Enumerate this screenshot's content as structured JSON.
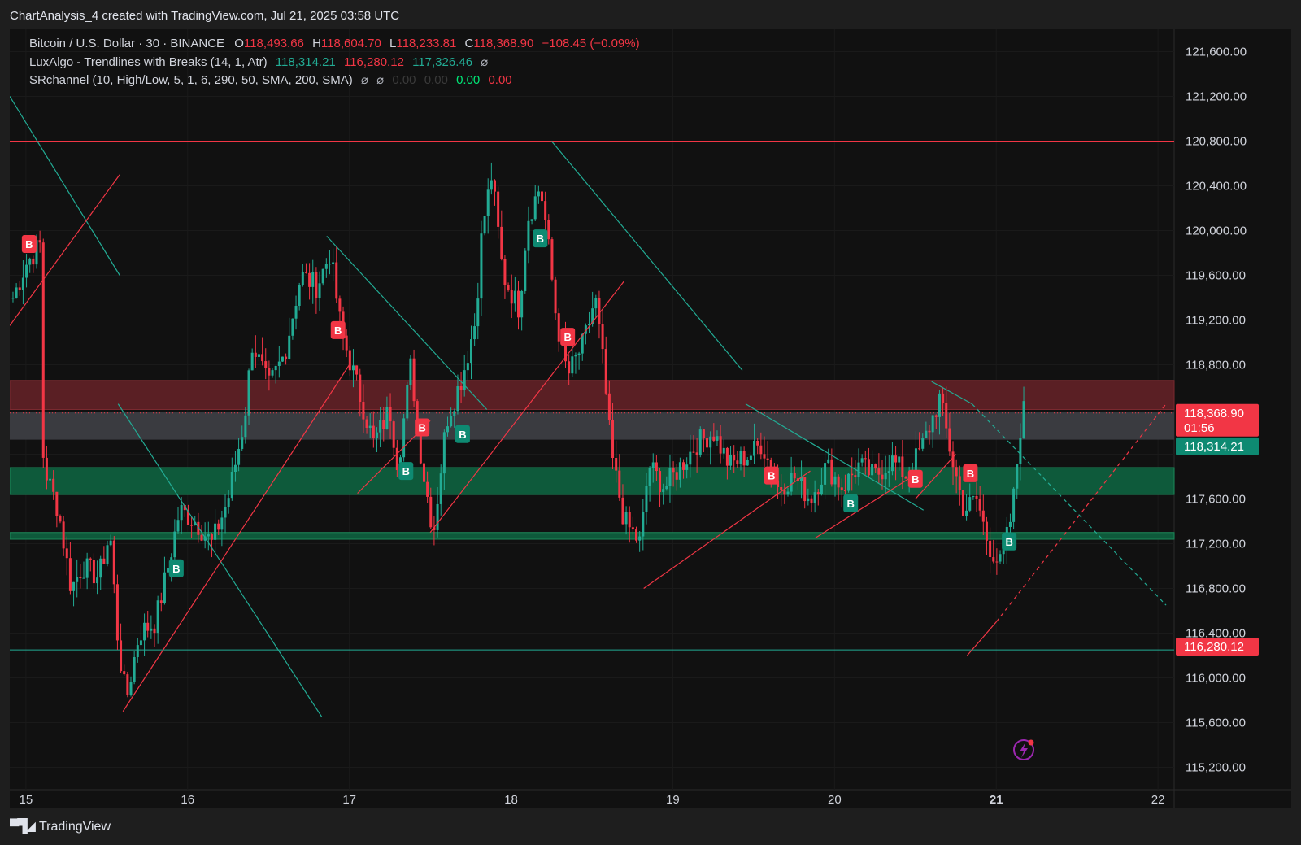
{
  "header": {
    "title": "ChartAnalysis_4 created with TradingView.com, Jul 21, 2025 03:58 UTC"
  },
  "legend": {
    "symbol": "Bitcoin / U.S. Dollar · 30 · BINANCE",
    "open_label": "O",
    "open": "118,493.66",
    "high_label": "H",
    "high": "118,604.70",
    "low_label": "L",
    "low": "118,233.81",
    "close_label": "C",
    "close": "118,368.90",
    "change": "−108.45 (−0.09%)",
    "luxalgo_name": "LuxAlgo - Trendlines with Breaks (14, 1, Atr)",
    "luxalgo_v1": "118,314.21",
    "luxalgo_v2": "116,280.12",
    "luxalgo_v3": "117,326.46",
    "luxalgo_sym": "⌀",
    "sr_name": "SRchannel (10, High/Low, 5, 1, 6, 290, 50, SMA, 200, SMA)",
    "sr_sym1": "⌀",
    "sr_sym2": "⌀",
    "sr_v1": "0.00",
    "sr_v2": "0.00",
    "sr_v3": "0.00",
    "sr_v4": "0.00"
  },
  "price_labels": {
    "last": "118,368.90",
    "countdown": "01:56",
    "trend_upper": "118,314.21",
    "trend_lower": "116,280.12"
  },
  "footer": {
    "brand": "TradingView"
  },
  "colors": {
    "up": "#22ab94",
    "down": "#f23645",
    "background": "#111111",
    "resistance_zone": "#5a1f24",
    "support_zone": "#0e5a3b",
    "price_zone": "#3a3b40"
  },
  "icons": {
    "logo": "tradingview-logo-icon",
    "flash": "lightning-icon"
  },
  "chart_data": {
    "type": "candlestick",
    "interval": "30",
    "y_axis": {
      "ylim": [
        115000,
        121800
      ],
      "ticks": [
        115200,
        115600,
        116000,
        116400,
        116800,
        117200,
        117600,
        118000,
        118400,
        118800,
        119200,
        119600,
        120000,
        120400,
        120800,
        121200,
        121600
      ],
      "tick_labels": [
        "115,200.00",
        "115,600.00",
        "116,000.00",
        "116,400.00",
        "116,800.00",
        "117,200.00",
        "117,600.00",
        "",
        "",
        "118,800.00",
        "119,200.00",
        "119,600.00",
        "120,000.00",
        "120,400.00",
        "120,800.00",
        "121,200.00",
        "121,600.00"
      ]
    },
    "x_axis": {
      "xlim": [
        14.9,
        22.1
      ],
      "ticks": [
        15,
        16,
        17,
        18,
        19,
        20,
        21,
        22
      ],
      "tick_labels": [
        "15",
        "16",
        "17",
        "18",
        "19",
        "20",
        "21",
        "22"
      ]
    },
    "path_points": [
      [
        14.92,
        119400
      ],
      [
        15.0,
        119700
      ],
      [
        15.1,
        119900
      ],
      [
        15.05,
        119550
      ],
      [
        15.07,
        118300
      ],
      [
        15.13,
        117800
      ],
      [
        15.2,
        117500
      ],
      [
        15.28,
        116800
      ],
      [
        15.35,
        117000
      ],
      [
        15.45,
        116900
      ],
      [
        15.52,
        117300
      ],
      [
        15.57,
        116300
      ],
      [
        15.62,
        115800
      ],
      [
        15.7,
        116400
      ],
      [
        15.8,
        116500
      ],
      [
        15.88,
        117000
      ],
      [
        15.95,
        117500
      ],
      [
        16.05,
        117400
      ],
      [
        16.15,
        117200
      ],
      [
        16.25,
        117600
      ],
      [
        16.35,
        118300
      ],
      [
        16.4,
        119000
      ],
      [
        16.5,
        118600
      ],
      [
        16.6,
        118900
      ],
      [
        16.7,
        119600
      ],
      [
        16.8,
        119500
      ],
      [
        16.88,
        119800
      ],
      [
        16.95,
        119100
      ],
      [
        17.05,
        118600
      ],
      [
        17.15,
        118100
      ],
      [
        17.25,
        118400
      ],
      [
        17.3,
        117900
      ],
      [
        17.38,
        118800
      ],
      [
        17.45,
        117900
      ],
      [
        17.52,
        117300
      ],
      [
        17.6,
        118300
      ],
      [
        17.7,
        118700
      ],
      [
        17.78,
        119200
      ],
      [
        17.82,
        120000
      ],
      [
        17.88,
        120500
      ],
      [
        17.95,
        119600
      ],
      [
        18.05,
        119300
      ],
      [
        18.1,
        120100
      ],
      [
        18.18,
        120400
      ],
      [
        18.22,
        120000
      ],
      [
        18.28,
        119200
      ],
      [
        18.35,
        118700
      ],
      [
        18.45,
        119000
      ],
      [
        18.52,
        119400
      ],
      [
        18.57,
        118800
      ],
      [
        18.62,
        118000
      ],
      [
        18.7,
        117400
      ],
      [
        18.8,
        117200
      ],
      [
        18.85,
        117900
      ],
      [
        18.95,
        117700
      ],
      [
        19.05,
        117900
      ],
      [
        19.15,
        118100
      ],
      [
        19.25,
        118200
      ],
      [
        19.35,
        117900
      ],
      [
        19.48,
        118000
      ],
      [
        19.55,
        118100
      ],
      [
        19.65,
        117700
      ],
      [
        19.75,
        117800
      ],
      [
        19.85,
        117600
      ],
      [
        19.95,
        117900
      ],
      [
        20.05,
        117700
      ],
      [
        20.15,
        117900
      ],
      [
        20.25,
        117800
      ],
      [
        20.35,
        117950
      ],
      [
        20.45,
        117800
      ],
      [
        20.55,
        118100
      ],
      [
        20.65,
        118500
      ],
      [
        20.72,
        118000
      ],
      [
        20.8,
        117500
      ],
      [
        20.88,
        117600
      ],
      [
        20.95,
        117200
      ],
      [
        21.03,
        117000
      ],
      [
        21.1,
        117500
      ],
      [
        21.16,
        118400
      ],
      [
        21.19,
        118370
      ]
    ],
    "signals": [
      {
        "label": "B",
        "x": 15.02,
        "y": 119880,
        "type": "bear"
      },
      {
        "label": "B",
        "x": 15.93,
        "y": 116980,
        "type": "bull"
      },
      {
        "label": "B",
        "x": 16.93,
        "y": 119110,
        "type": "bear"
      },
      {
        "label": "B",
        "x": 17.35,
        "y": 117850,
        "type": "bull"
      },
      {
        "label": "B",
        "x": 17.45,
        "y": 118240,
        "type": "bear"
      },
      {
        "label": "B",
        "x": 17.7,
        "y": 118180,
        "type": "bull"
      },
      {
        "label": "B",
        "x": 18.18,
        "y": 119930,
        "type": "bull"
      },
      {
        "label": "B",
        "x": 18.35,
        "y": 119050,
        "type": "bear"
      },
      {
        "label": "B",
        "x": 19.61,
        "y": 117810,
        "type": "bear"
      },
      {
        "label": "B",
        "x": 20.1,
        "y": 117560,
        "type": "bull"
      },
      {
        "label": "B",
        "x": 20.5,
        "y": 117780,
        "type": "bear"
      },
      {
        "label": "B",
        "x": 20.84,
        "y": 117830,
        "type": "bear"
      },
      {
        "label": "B",
        "x": 21.08,
        "y": 117220,
        "type": "bull"
      }
    ],
    "zones": [
      {
        "name": "resistance",
        "from": 118400,
        "to": 118660,
        "color": "#5a1f24"
      },
      {
        "name": "current",
        "from": 118130,
        "to": 118380,
        "color": "#3a3b40"
      },
      {
        "name": "support",
        "from": 117640,
        "to": 117880,
        "color": "#0e5a3b"
      },
      {
        "name": "support-thin",
        "from": 117240,
        "to": 117300,
        "color": "#0e5a3b"
      }
    ],
    "horizontal_lines": [
      {
        "y": 120800,
        "color": "#f23645"
      },
      {
        "y": 116250,
        "color": "#22ab94"
      }
    ],
    "trendlines": [
      {
        "from": [
          14.9,
          121200
        ],
        "to": [
          15.58,
          119600
        ],
        "color": "teal"
      },
      {
        "from": [
          14.9,
          119150
        ],
        "to": [
          15.58,
          120500
        ],
        "color": "red"
      },
      {
        "from": [
          15.57,
          118450
        ],
        "to": [
          16.83,
          115650
        ],
        "color": "teal"
      },
      {
        "from": [
          15.6,
          115700
        ],
        "to": [
          17.0,
          118800
        ],
        "color": "red"
      },
      {
        "from": [
          16.86,
          119950
        ],
        "to": [
          17.85,
          118400
        ],
        "color": "teal"
      },
      {
        "from": [
          17.05,
          117650
        ],
        "to": [
          17.5,
          118300
        ],
        "color": "red"
      },
      {
        "from": [
          17.5,
          117300
        ],
        "to": [
          18.7,
          119550
        ],
        "color": "red"
      },
      {
        "from": [
          18.25,
          120800
        ],
        "to": [
          19.43,
          118750
        ],
        "color": "teal"
      },
      {
        "from": [
          18.82,
          116800
        ],
        "to": [
          19.85,
          117850
        ],
        "color": "red"
      },
      {
        "from": [
          19.45,
          118450
        ],
        "to": [
          20.55,
          117500
        ],
        "color": "teal"
      },
      {
        "from": [
          19.88,
          117250
        ],
        "to": [
          20.48,
          117800
        ],
        "color": "red"
      },
      {
        "from": [
          20.5,
          117600
        ],
        "to": [
          20.75,
          118000
        ],
        "color": "red"
      },
      {
        "from": [
          20.6,
          118650
        ],
        "to": [
          20.85,
          118450
        ],
        "color": "teal"
      },
      {
        "from": [
          20.82,
          116200
        ],
        "to": [
          21.0,
          116500
        ],
        "color": "red"
      }
    ],
    "projections": [
      {
        "from": [
          21.0,
          116500
        ],
        "to": [
          22.05,
          118450
        ],
        "color": "red"
      },
      {
        "from": [
          20.85,
          118450
        ],
        "to": [
          22.05,
          116650
        ],
        "color": "teal"
      }
    ],
    "last_price": 118368.9
  }
}
